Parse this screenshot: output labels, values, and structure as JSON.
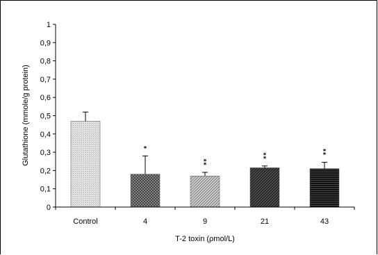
{
  "chart_data": {
    "type": "bar",
    "categories": [
      "Control",
      "4",
      "9",
      "21",
      "43"
    ],
    "values": [
      0.47,
      0.18,
      0.17,
      0.215,
      0.21
    ],
    "errors": [
      0.05,
      0.1,
      0.02,
      0.01,
      0.035
    ],
    "significance": [
      "",
      "*",
      "*\n*",
      "*\n*",
      "*\n*"
    ],
    "xlabel": "T-2 toxin (ρmol/L)",
    "ylabel": "Glutathione (mmole/g protein)",
    "ylim": [
      0,
      1
    ],
    "yticks": [
      "0",
      "0,1",
      "0,2",
      "0,3",
      "0,4",
      "0,5",
      "0,6",
      "0,7",
      "0,8",
      "0,9",
      "1"
    ],
    "grid": false,
    "legend": "none",
    "bar_patterns": [
      "light-dotted",
      "dark-crosshatch",
      "light-diagonal",
      "dark-diagonal",
      "black-horizontal"
    ]
  }
}
